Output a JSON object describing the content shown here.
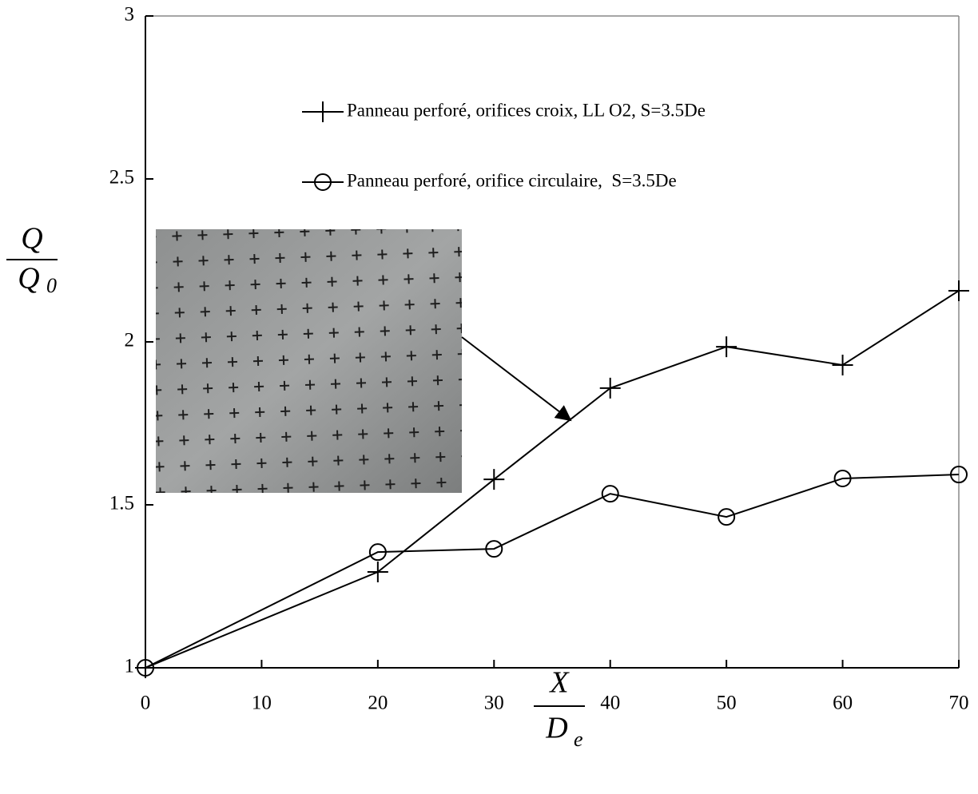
{
  "chart_data": {
    "type": "line",
    "x_label": {
      "numerator": "X",
      "denominator_base": "D",
      "denominator_sub": "e"
    },
    "y_label": {
      "numerator": "Q",
      "denominator_base": "Q",
      "denominator_sub": "0"
    },
    "x": [
      0,
      20,
      30,
      40,
      50,
      60,
      70
    ],
    "series": [
      {
        "name": "Panneau perforé, orifices croix, LL O2, S=3.5De",
        "color": "#000000",
        "marker": "plus",
        "values": [
          1.0,
          1.294,
          1.578,
          1.858,
          1.985,
          1.929,
          2.157
        ]
      },
      {
        "name": "Panneau perforé, orifice circulaire,  S=3.5De",
        "color": "#000000",
        "marker": "circle",
        "values": [
          1.0,
          1.355,
          1.365,
          1.534,
          1.463,
          1.581,
          1.593
        ]
      }
    ],
    "xlim": [
      0,
      70
    ],
    "xticks": [
      0,
      10,
      20,
      30,
      40,
      50,
      60,
      70
    ],
    "ylim": [
      1,
      3
    ],
    "yticks": [
      1,
      1.5,
      2,
      2.5,
      3
    ],
    "legend": "upper center",
    "grid": false
  }
}
